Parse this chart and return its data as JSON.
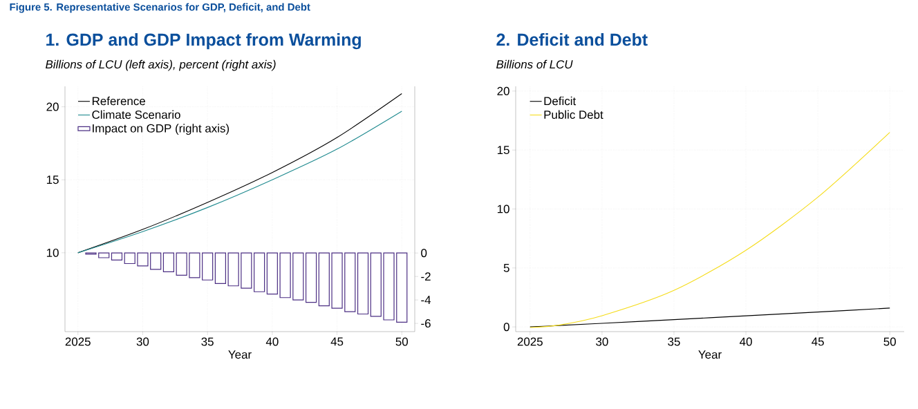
{
  "chart_data": [
    {
      "type": "line",
      "title": "1. GDP and GDP Impact from Warming",
      "subtitle": "Billions of LCU (left axis), percent (right axis)",
      "xlabel": "Year",
      "annotations": [
        "Figure 5. Representative Scenarios for GDP, Deficit, and Debt"
      ],
      "x": [
        2025,
        2030,
        2035,
        2040,
        2045,
        2050
      ],
      "series": [
        {
          "name": "Reference",
          "color": "#000000",
          "values": [
            10,
            11.6,
            13.45,
            15.5,
            17.9,
            20.9
          ]
        },
        {
          "name": "Climate Scenario",
          "color": "#1f8a8f",
          "values": [
            10,
            11.45,
            13.1,
            15.0,
            17.1,
            19.7
          ]
        },
        {
          "name": "Impact on GDP (right axis)",
          "type": "bar",
          "axis": "y2",
          "color": "#4b2e83",
          "x": [
            2026,
            2027,
            2028,
            2029,
            2030,
            2031,
            2032,
            2033,
            2034,
            2035,
            2036,
            2037,
            2038,
            2039,
            2040,
            2041,
            2042,
            2043,
            2044,
            2045,
            2046,
            2047,
            2048,
            2049,
            2050
          ],
          "values": [
            -0.1,
            -0.4,
            -0.6,
            -0.9,
            -1.1,
            -1.4,
            -1.6,
            -1.9,
            -2.1,
            -2.3,
            -2.6,
            -2.8,
            -3.0,
            -3.3,
            -3.5,
            -3.8,
            -4.0,
            -4.2,
            -4.5,
            -4.7,
            -5.0,
            -5.2,
            -5.4,
            -5.7,
            -5.9
          ]
        }
      ],
      "xlim": [
        2024,
        2051
      ],
      "ylim": [
        4.6,
        21.4
      ],
      "y2lim": [
        -6.7,
        14.2
      ],
      "xticks": [
        {
          "value": 2025,
          "label": "2025"
        },
        {
          "value": 2030,
          "label": "30"
        },
        {
          "value": 2035,
          "label": "35"
        },
        {
          "value": 2040,
          "label": "40"
        },
        {
          "value": 2045,
          "label": "45"
        },
        {
          "value": 2050,
          "label": "50"
        }
      ],
      "yticks": [
        10,
        15,
        20
      ],
      "y2ticks": [
        0,
        -2,
        -4,
        -6
      ],
      "grid": true,
      "legend": "top left"
    },
    {
      "type": "line",
      "title": "2. Deficit and Debt",
      "subtitle": "Billions of LCU",
      "xlabel": "Year",
      "x": [
        2025,
        2027,
        2030,
        2035,
        2040,
        2045,
        2050
      ],
      "series": [
        {
          "name": "Deficit",
          "color": "#000000",
          "values": [
            0,
            0.12,
            0.3,
            0.62,
            0.94,
            1.26,
            1.6
          ]
        },
        {
          "name": "Public Debt",
          "color": "#f5dc1a",
          "values": [
            -0.05,
            0.15,
            0.95,
            3.1,
            6.5,
            11.0,
            16.5
          ]
        }
      ],
      "xlim": [
        2024,
        2051
      ],
      "ylim": [
        -0.4,
        20.4
      ],
      "xticks": [
        {
          "value": 2025,
          "label": "2025"
        },
        {
          "value": 2030,
          "label": "30"
        },
        {
          "value": 2035,
          "label": "35"
        },
        {
          "value": 2040,
          "label": "40"
        },
        {
          "value": 2045,
          "label": "45"
        },
        {
          "value": 2050,
          "label": "50"
        }
      ],
      "yticks": [
        0,
        5,
        10,
        15,
        20
      ],
      "grid": true,
      "legend": "top left"
    }
  ]
}
